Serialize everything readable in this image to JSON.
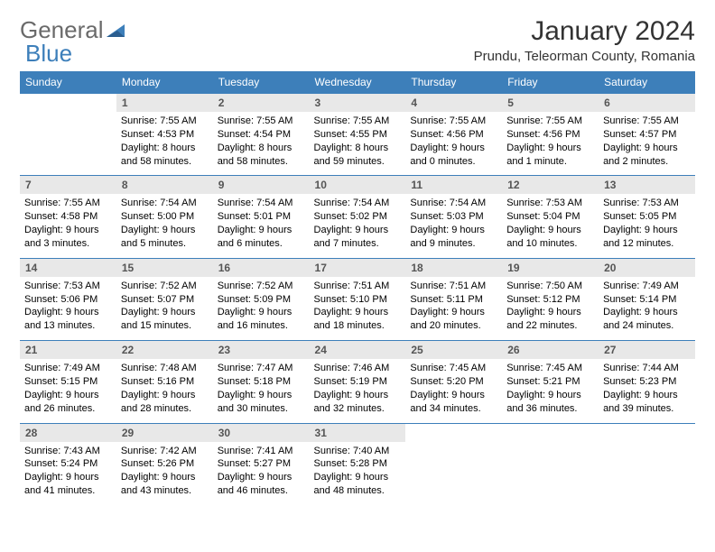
{
  "logo": {
    "word1": "General",
    "word2": "Blue"
  },
  "title": "January 2024",
  "location": "Prundu, Teleorman County, Romania",
  "headers": {
    "bg": "#3d7fba",
    "fg": "#ffffff",
    "days": [
      "Sunday",
      "Monday",
      "Tuesday",
      "Wednesday",
      "Thursday",
      "Friday",
      "Saturday"
    ]
  },
  "style": {
    "daynum_bg": "#e8e8e8",
    "border_color": "#3d7fba",
    "text_color": "#000000",
    "fontsize_header": 12,
    "fontsize_cell": 11
  },
  "weeks": [
    [
      null,
      {
        "n": "1",
        "sr": "7:55 AM",
        "ss": "4:53 PM",
        "dl1": "Daylight: 8 hours",
        "dl2": "and 58 minutes."
      },
      {
        "n": "2",
        "sr": "7:55 AM",
        "ss": "4:54 PM",
        "dl1": "Daylight: 8 hours",
        "dl2": "and 58 minutes."
      },
      {
        "n": "3",
        "sr": "7:55 AM",
        "ss": "4:55 PM",
        "dl1": "Daylight: 8 hours",
        "dl2": "and 59 minutes."
      },
      {
        "n": "4",
        "sr": "7:55 AM",
        "ss": "4:56 PM",
        "dl1": "Daylight: 9 hours",
        "dl2": "and 0 minutes."
      },
      {
        "n": "5",
        "sr": "7:55 AM",
        "ss": "4:56 PM",
        "dl1": "Daylight: 9 hours",
        "dl2": "and 1 minute."
      },
      {
        "n": "6",
        "sr": "7:55 AM",
        "ss": "4:57 PM",
        "dl1": "Daylight: 9 hours",
        "dl2": "and 2 minutes."
      }
    ],
    [
      {
        "n": "7",
        "sr": "7:55 AM",
        "ss": "4:58 PM",
        "dl1": "Daylight: 9 hours",
        "dl2": "and 3 minutes."
      },
      {
        "n": "8",
        "sr": "7:54 AM",
        "ss": "5:00 PM",
        "dl1": "Daylight: 9 hours",
        "dl2": "and 5 minutes."
      },
      {
        "n": "9",
        "sr": "7:54 AM",
        "ss": "5:01 PM",
        "dl1": "Daylight: 9 hours",
        "dl2": "and 6 minutes."
      },
      {
        "n": "10",
        "sr": "7:54 AM",
        "ss": "5:02 PM",
        "dl1": "Daylight: 9 hours",
        "dl2": "and 7 minutes."
      },
      {
        "n": "11",
        "sr": "7:54 AM",
        "ss": "5:03 PM",
        "dl1": "Daylight: 9 hours",
        "dl2": "and 9 minutes."
      },
      {
        "n": "12",
        "sr": "7:53 AM",
        "ss": "5:04 PM",
        "dl1": "Daylight: 9 hours",
        "dl2": "and 10 minutes."
      },
      {
        "n": "13",
        "sr": "7:53 AM",
        "ss": "5:05 PM",
        "dl1": "Daylight: 9 hours",
        "dl2": "and 12 minutes."
      }
    ],
    [
      {
        "n": "14",
        "sr": "7:53 AM",
        "ss": "5:06 PM",
        "dl1": "Daylight: 9 hours",
        "dl2": "and 13 minutes."
      },
      {
        "n": "15",
        "sr": "7:52 AM",
        "ss": "5:07 PM",
        "dl1": "Daylight: 9 hours",
        "dl2": "and 15 minutes."
      },
      {
        "n": "16",
        "sr": "7:52 AM",
        "ss": "5:09 PM",
        "dl1": "Daylight: 9 hours",
        "dl2": "and 16 minutes."
      },
      {
        "n": "17",
        "sr": "7:51 AM",
        "ss": "5:10 PM",
        "dl1": "Daylight: 9 hours",
        "dl2": "and 18 minutes."
      },
      {
        "n": "18",
        "sr": "7:51 AM",
        "ss": "5:11 PM",
        "dl1": "Daylight: 9 hours",
        "dl2": "and 20 minutes."
      },
      {
        "n": "19",
        "sr": "7:50 AM",
        "ss": "5:12 PM",
        "dl1": "Daylight: 9 hours",
        "dl2": "and 22 minutes."
      },
      {
        "n": "20",
        "sr": "7:49 AM",
        "ss": "5:14 PM",
        "dl1": "Daylight: 9 hours",
        "dl2": "and 24 minutes."
      }
    ],
    [
      {
        "n": "21",
        "sr": "7:49 AM",
        "ss": "5:15 PM",
        "dl1": "Daylight: 9 hours",
        "dl2": "and 26 minutes."
      },
      {
        "n": "22",
        "sr": "7:48 AM",
        "ss": "5:16 PM",
        "dl1": "Daylight: 9 hours",
        "dl2": "and 28 minutes."
      },
      {
        "n": "23",
        "sr": "7:47 AM",
        "ss": "5:18 PM",
        "dl1": "Daylight: 9 hours",
        "dl2": "and 30 minutes."
      },
      {
        "n": "24",
        "sr": "7:46 AM",
        "ss": "5:19 PM",
        "dl1": "Daylight: 9 hours",
        "dl2": "and 32 minutes."
      },
      {
        "n": "25",
        "sr": "7:45 AM",
        "ss": "5:20 PM",
        "dl1": "Daylight: 9 hours",
        "dl2": "and 34 minutes."
      },
      {
        "n": "26",
        "sr": "7:45 AM",
        "ss": "5:21 PM",
        "dl1": "Daylight: 9 hours",
        "dl2": "and 36 minutes."
      },
      {
        "n": "27",
        "sr": "7:44 AM",
        "ss": "5:23 PM",
        "dl1": "Daylight: 9 hours",
        "dl2": "and 39 minutes."
      }
    ],
    [
      {
        "n": "28",
        "sr": "7:43 AM",
        "ss": "5:24 PM",
        "dl1": "Daylight: 9 hours",
        "dl2": "and 41 minutes."
      },
      {
        "n": "29",
        "sr": "7:42 AM",
        "ss": "5:26 PM",
        "dl1": "Daylight: 9 hours",
        "dl2": "and 43 minutes."
      },
      {
        "n": "30",
        "sr": "7:41 AM",
        "ss": "5:27 PM",
        "dl1": "Daylight: 9 hours",
        "dl2": "and 46 minutes."
      },
      {
        "n": "31",
        "sr": "7:40 AM",
        "ss": "5:28 PM",
        "dl1": "Daylight: 9 hours",
        "dl2": "and 48 minutes."
      },
      null,
      null,
      null
    ]
  ],
  "labels": {
    "sunrise": "Sunrise:",
    "sunset": "Sunset:"
  }
}
